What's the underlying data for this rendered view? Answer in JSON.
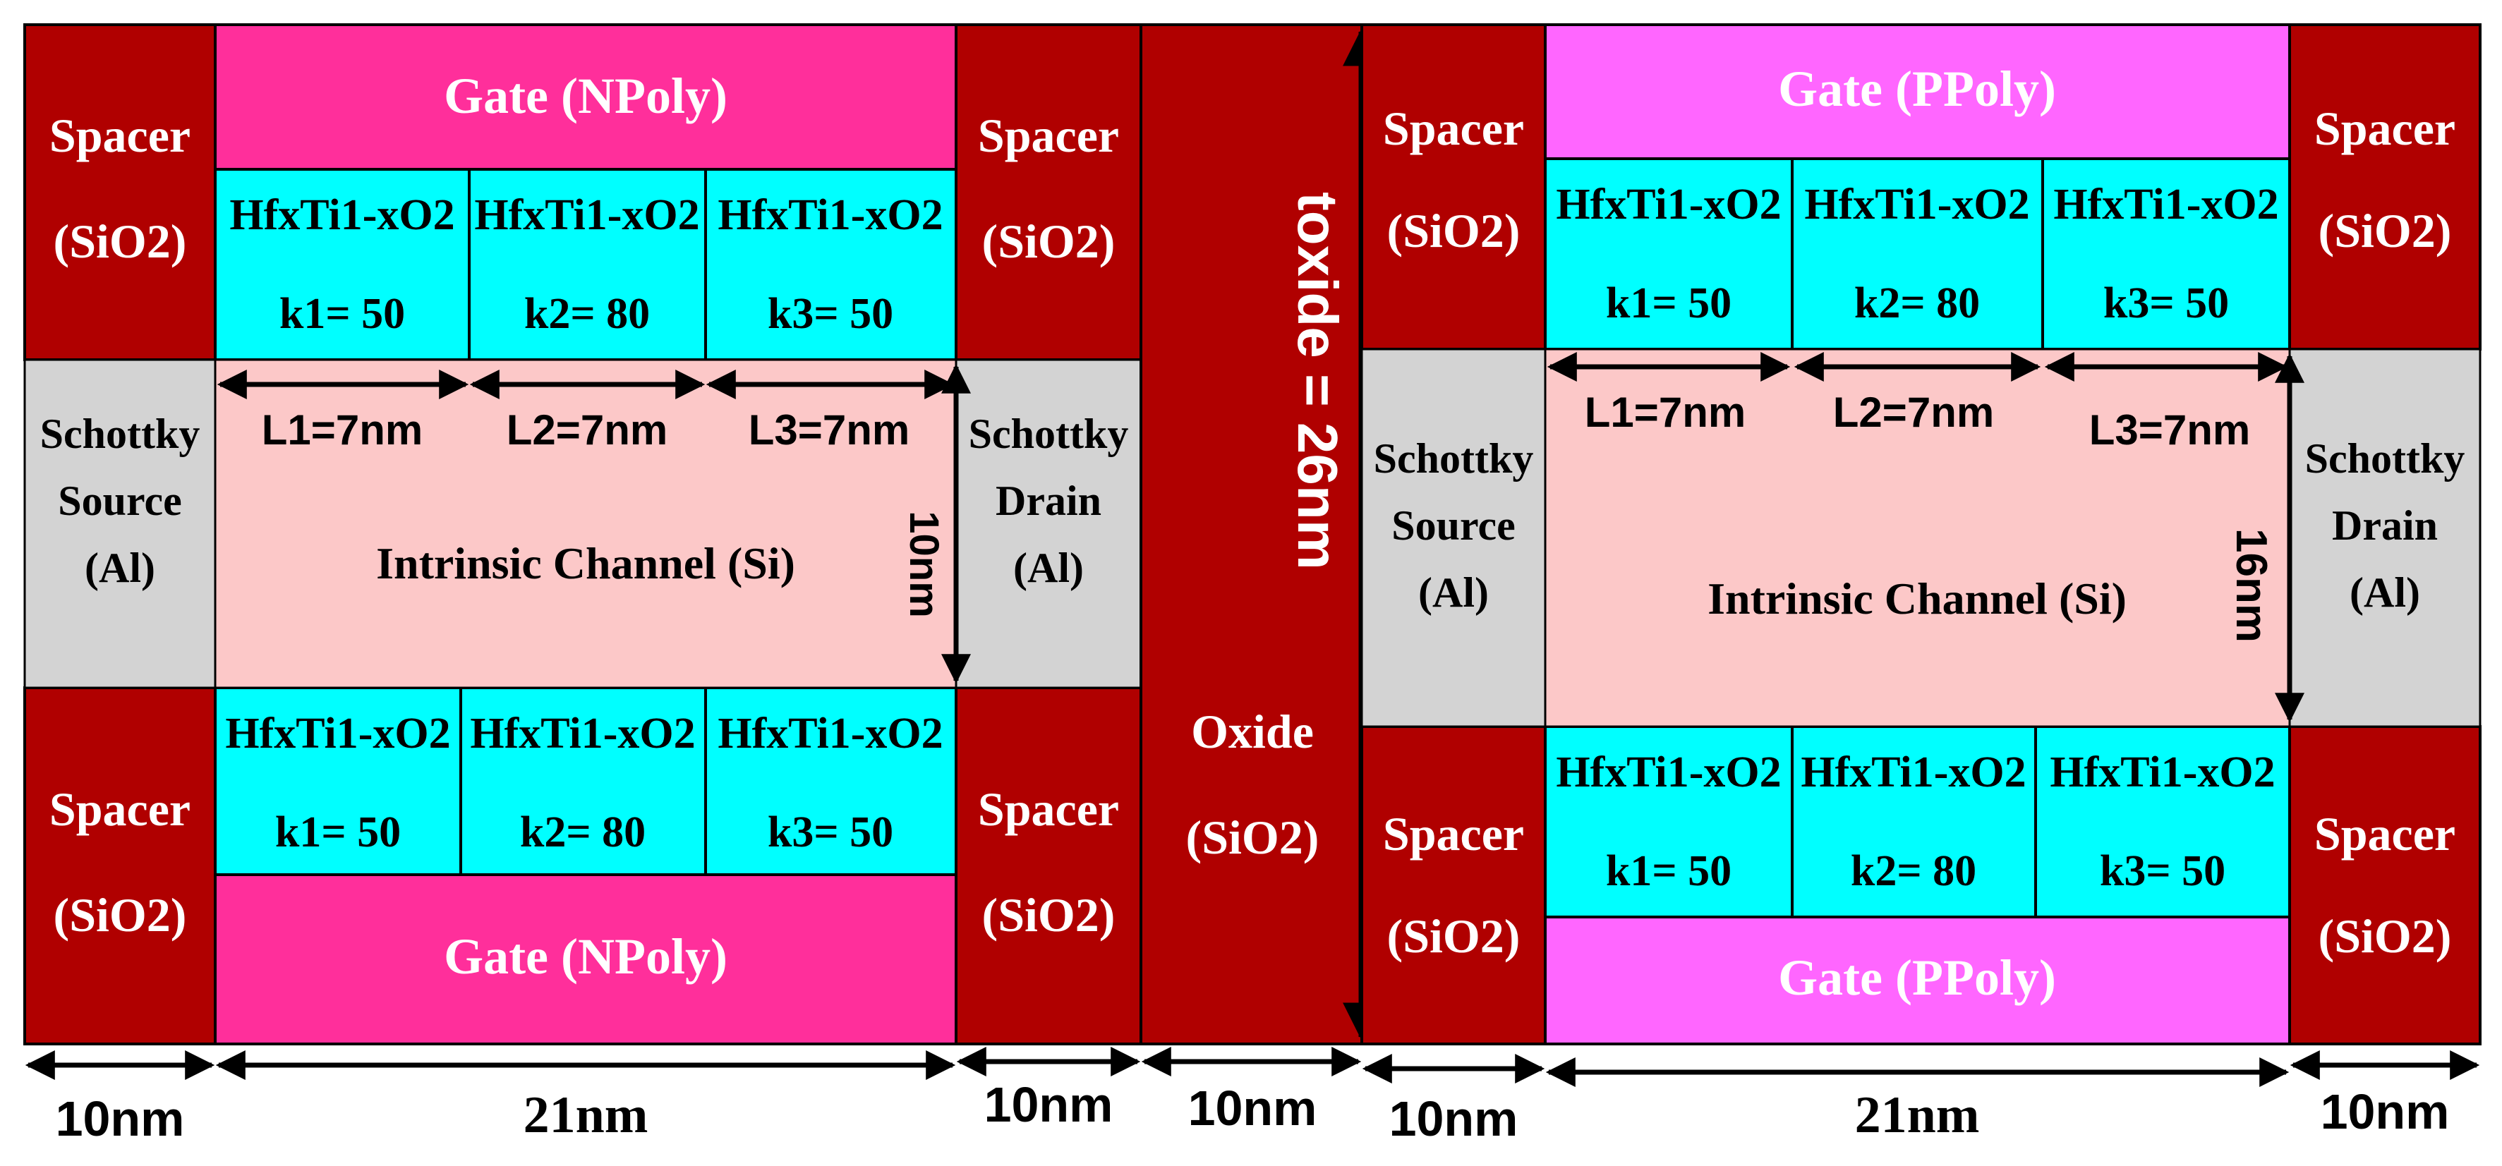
{
  "colors": {
    "spacer": "#b00000",
    "gate_npoly": "#ff2f9b",
    "gate_ppoly": "#ff66ff",
    "hfo": "#00ffff",
    "channel": "#fcc8c8",
    "contact": "#d3d3d3",
    "oxide": "#b00000"
  },
  "labels": {
    "spacer_name": "Spacer",
    "spacer_mat": "(SiO2)",
    "gate_n": "Gate (NPoly)",
    "gate_p": "Gate (PPoly)",
    "hfo": "HfxTi1-xO2",
    "k1": "k1= 50",
    "k2": "k2= 80",
    "k3": "k3= 50",
    "L1": "L1=7nm",
    "L2": "L2=7nm",
    "L3": "L3=7nm",
    "schottky": "Schottky",
    "source": "Source",
    "drain": "Drain",
    "al": "(Al)",
    "channel": "Intrinsic Channel (Si)",
    "thick_left": "10nm",
    "thick_right": "16nm",
    "oxide_name": "Oxide",
    "oxide_mat": "(SiO2)",
    "toxide": "toxide = 26nm",
    "dim_10": "10nm",
    "dim_21": "21nm"
  }
}
